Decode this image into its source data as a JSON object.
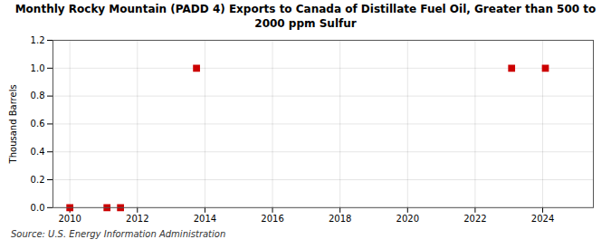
{
  "chart_data": {
    "type": "scatter",
    "title": "Monthly Rocky Mountain (PADD 4) Exports to Canada of Distillate Fuel Oil, Greater than 500 to\n2000 ppm Sulfur",
    "ylabel": "Thousand Barrels",
    "source": "Source: U.S. Energy Information Administration",
    "x": [
      2010.0,
      2011.1,
      2011.5,
      2013.75,
      2023.08,
      2024.08
    ],
    "values": [
      0.0,
      0.0,
      0.0,
      1.0,
      1.0,
      1.0
    ],
    "color": "#cc0000",
    "marker": "square",
    "xlim": [
      2009.5,
      2025.5
    ],
    "xticks": [
      2010,
      2012,
      2014,
      2016,
      2018,
      2020,
      2022,
      2024
    ],
    "ylim": [
      0.0,
      1.2
    ],
    "yticks": [
      {
        "value": 0.0,
        "label": "0.0"
      },
      0.2,
      0.4,
      0.6,
      0.8,
      {
        "value": 1.0,
        "label": "1.0"
      },
      1.2
    ],
    "grid": true
  }
}
